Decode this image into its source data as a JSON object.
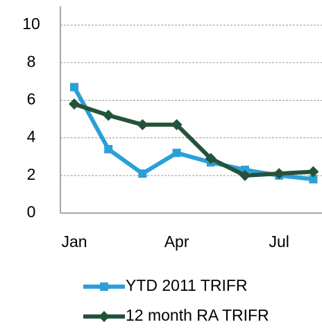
{
  "chart_data": {
    "type": "line",
    "categories": [
      "Jan",
      null,
      null,
      "Apr",
      null,
      null,
      "Jul",
      null
    ],
    "series": [
      {
        "name": "YTD 2011 TRIFR",
        "color": "#2a9fd8",
        "marker": "square",
        "values": [
          6.7,
          3.4,
          2.1,
          3.2,
          2.7,
          2.3,
          2.0,
          1.8
        ]
      },
      {
        "name": "12 month RA TRIFR",
        "color": "#25523b",
        "marker": "diamond",
        "values": [
          5.8,
          5.2,
          4.7,
          4.7,
          2.9,
          2.0,
          2.1,
          2.2
        ]
      }
    ],
    "ylim": [
      0,
      11
    ],
    "yticks": [
      0,
      2,
      4,
      6,
      8,
      10
    ],
    "grid": true,
    "legend": "bottom"
  }
}
